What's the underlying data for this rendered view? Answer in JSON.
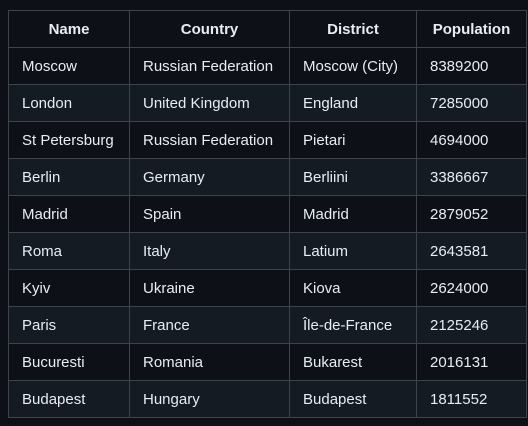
{
  "table": {
    "headers": [
      "Name",
      "Country",
      "District",
      "Population"
    ],
    "rows": [
      [
        "Moscow",
        "Russian Federation",
        "Moscow (City)",
        "8389200"
      ],
      [
        "London",
        "United Kingdom",
        "England",
        "7285000"
      ],
      [
        "St Petersburg",
        "Russian Federation",
        "Pietari",
        "4694000"
      ],
      [
        "Berlin",
        "Germany",
        "Berliini",
        "3386667"
      ],
      [
        "Madrid",
        "Spain",
        "Madrid",
        "2879052"
      ],
      [
        "Roma",
        "Italy",
        "Latium",
        "2643581"
      ],
      [
        "Kyiv",
        "Ukraine",
        "Kiova",
        "2624000"
      ],
      [
        "Paris",
        "France",
        "Île-de-France",
        "2125246"
      ],
      [
        "Bucuresti",
        "Romania",
        "Bukarest",
        "2016131"
      ],
      [
        "Budapest",
        "Hungary",
        "Budapest",
        "1811552"
      ]
    ]
  }
}
